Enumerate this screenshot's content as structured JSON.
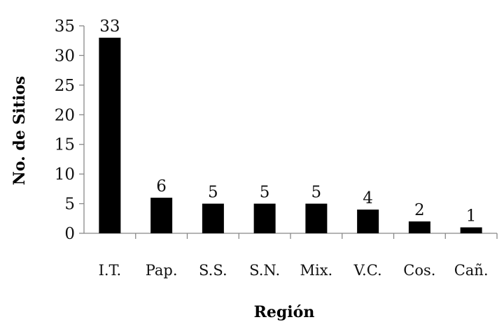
{
  "chart_data": {
    "type": "bar",
    "title": "",
    "xlabel": "Región",
    "ylabel": "No. de Sitios",
    "categories": [
      "I.T.",
      "Pap.",
      "S.S.",
      "S.N.",
      "Mix.",
      "V.C.",
      "Cos.",
      "Cañ."
    ],
    "values": [
      33,
      6,
      5,
      5,
      5,
      4,
      2,
      1
    ],
    "data_labels": [
      "33",
      "6",
      "5",
      "5",
      "5",
      "4",
      "2",
      "1"
    ],
    "ylim": [
      0,
      35
    ],
    "yticks": [
      "0",
      "5",
      "10",
      "15",
      "20",
      "25",
      "30",
      "35"
    ],
    "grid": false,
    "legend": "none",
    "colors": {
      "bar": "#000000",
      "axis": "#888888",
      "text": "#111111"
    }
  }
}
